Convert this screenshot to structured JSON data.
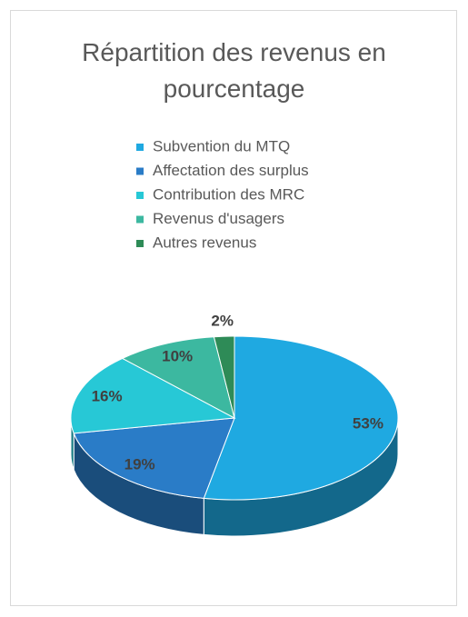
{
  "chart_data": {
    "type": "pie3d",
    "title": "Répartition des revenus en pourcentage",
    "categories": [
      "Subvention du MTQ",
      "Affectation des surplus",
      "Contribution des MRC",
      "Revenus d'usagers",
      "Autres revenus"
    ],
    "values": [
      53,
      19,
      16,
      10,
      2
    ],
    "value_labels": [
      "53%",
      "19%",
      "16%",
      "10%",
      "2%"
    ],
    "colors": [
      "#1fa9e1",
      "#2a7cc7",
      "#27c8d6",
      "#3cb8a0",
      "#2e8b57"
    ],
    "legend": "top"
  }
}
